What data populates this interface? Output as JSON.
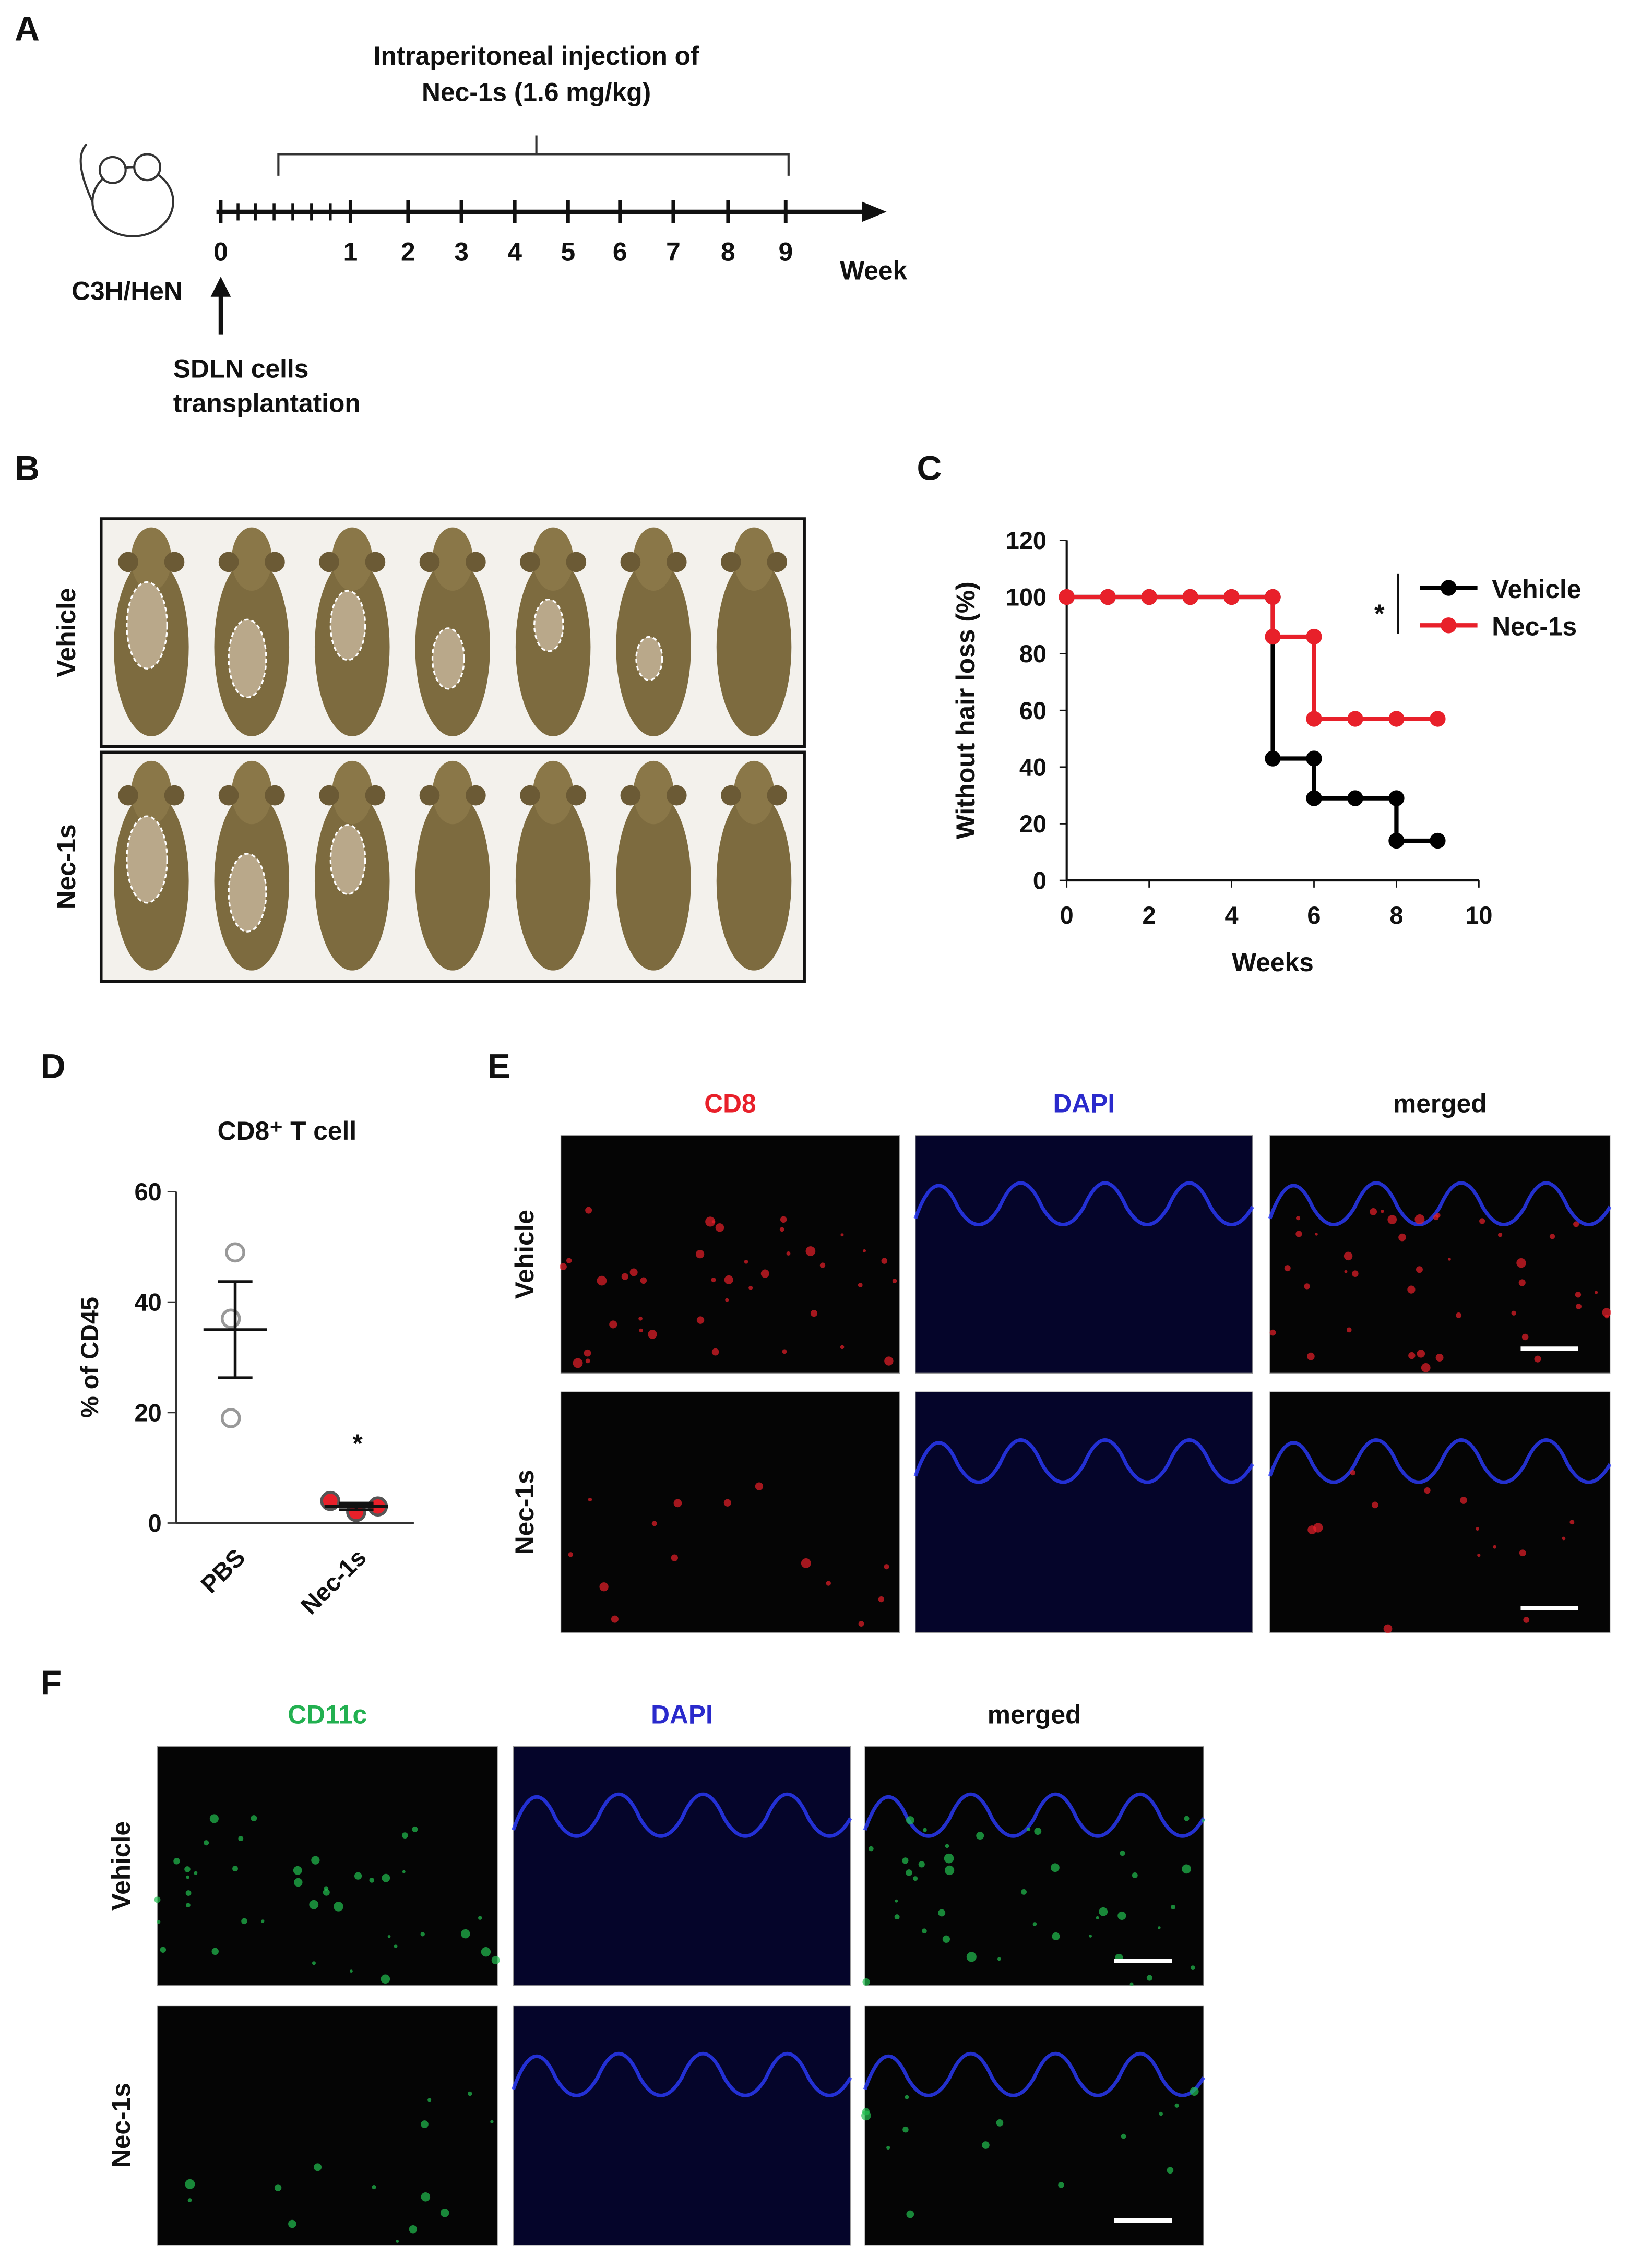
{
  "panel_labels": [
    "A",
    "B",
    "C",
    "D",
    "E",
    "F"
  ],
  "timeline": {
    "title": [
      "Intraperitoneal injection of",
      "Nec-1s (1.6 mg/kg)"
    ],
    "strain": "C3H/HeN",
    "weeks": [
      0,
      1,
      2,
      3,
      4,
      5,
      6,
      7,
      8,
      9
    ],
    "unit": "Week",
    "event": [
      "SDLN cells",
      "transplantation"
    ]
  },
  "photos": {
    "groups": [
      "Vehicle",
      "Nec-1s"
    ]
  },
  "chart_data": [
    {
      "type": "line",
      "step": true,
      "x": [
        0,
        1,
        2,
        3,
        4,
        5,
        6,
        7,
        8,
        9
      ],
      "series": [
        {
          "name": "Vehicle",
          "color": "#000000",
          "values": [
            100,
            100,
            100,
            100,
            100,
            43,
            29,
            29,
            14,
            14
          ]
        },
        {
          "name": "Nec-1s",
          "color": "#e8202a",
          "values": [
            100,
            100,
            100,
            100,
            100,
            86,
            57,
            57,
            57,
            57
          ]
        }
      ],
      "xlim": [
        0,
        10
      ],
      "xticks": [
        0,
        2,
        4,
        6,
        8,
        10
      ],
      "ylim": [
        0,
        120
      ],
      "yticks": [
        0,
        20,
        40,
        60,
        80,
        100,
        120
      ],
      "xlabel": "Weeks",
      "ylabel": "Without hair loss (%)",
      "annotation": "*",
      "legend": "upper right"
    },
    {
      "type": "dot",
      "title": "CD8⁺ T cell",
      "categories": [
        "PBS",
        "Nec-1s"
      ],
      "points": [
        [
          49,
          37,
          19
        ],
        [
          4,
          2,
          3
        ]
      ],
      "means": [
        35,
        3
      ],
      "sems": [
        8.7,
        0.6
      ],
      "colors": [
        "#999999",
        "#e8202a"
      ],
      "filled": [
        false,
        true
      ],
      "ylim": [
        0,
        60
      ],
      "yticks": [
        0,
        20,
        40,
        60
      ],
      "ylabel": "% of CD45",
      "annotation": "*"
    }
  ],
  "staining_cd8": {
    "channels": [
      "CD8",
      "DAPI",
      "merged"
    ],
    "colors": [
      "#e8202a",
      "#2a2acc",
      "#111111"
    ],
    "groups": [
      "Vehicle",
      "Nec-1s"
    ]
  },
  "staining_cd11c": {
    "channels": [
      "CD11c",
      "DAPI",
      "merged"
    ],
    "colors": [
      "#22b050",
      "#2a2acc",
      "#111111"
    ],
    "groups": [
      "Vehicle",
      "Nec-1s"
    ]
  }
}
